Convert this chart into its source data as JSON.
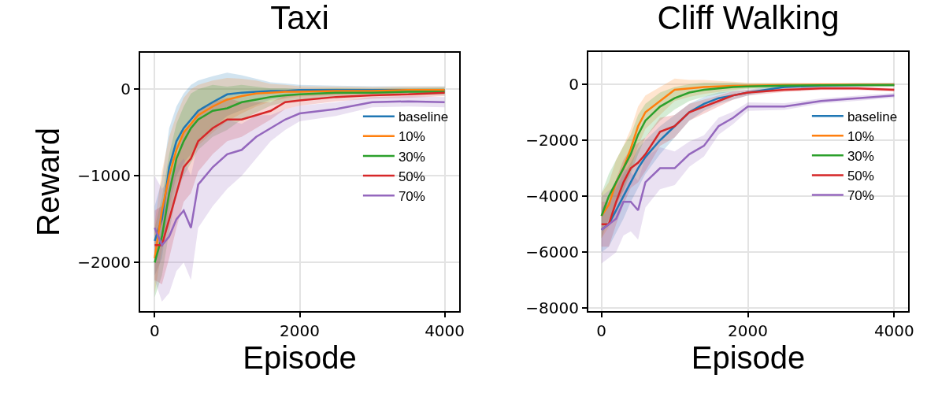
{
  "chart_data": [
    {
      "type": "line",
      "title": "Taxi",
      "xlabel": "Episode",
      "ylabel": "Reward",
      "x": [
        0,
        100,
        200,
        300,
        400,
        500,
        600,
        800,
        1000,
        1200,
        1400,
        1600,
        1800,
        2000,
        2500,
        3000,
        3500,
        4000
      ],
      "xlim": [
        -200,
        4200
      ],
      "xticks": [
        0,
        2000,
        4000
      ],
      "ylim": [
        -2560,
        420
      ],
      "yticks": [
        -2000,
        -1000,
        0
      ],
      "grid": true,
      "legend": "right",
      "line_style": "solid",
      "marker": "none",
      "series": [
        {
          "name": "baseline",
          "color": "#1f77b4",
          "values": [
            -1750,
            -1500,
            -900,
            -600,
            -450,
            -350,
            -250,
            -150,
            -60,
            -40,
            -30,
            -20,
            -20,
            -10,
            -10,
            -10,
            -10,
            -10
          ],
          "lower": [
            -2150,
            -1950,
            -1350,
            -1000,
            -850,
            -750,
            -600,
            -450,
            -310,
            -240,
            -180,
            -120,
            -95,
            -70,
            -60,
            -45,
            -45,
            -45
          ],
          "upper": [
            -1350,
            -1050,
            -450,
            -200,
            -50,
            50,
            100,
            150,
            190,
            160,
            120,
            80,
            65,
            50,
            40,
            35,
            35,
            35
          ]
        },
        {
          "name": "10%",
          "color": "#ff7f0e",
          "values": [
            -1950,
            -1400,
            -1000,
            -700,
            -500,
            -400,
            -300,
            -200,
            -120,
            -80,
            -50,
            -40,
            -30,
            -30,
            -20,
            -20,
            -10,
            -10
          ],
          "lower": [
            -2350,
            -1850,
            -1450,
            -1100,
            -900,
            -800,
            -650,
            -500,
            -370,
            -280,
            -200,
            -140,
            -110,
            -85,
            -70,
            -55,
            -50,
            -50
          ],
          "upper": [
            -1550,
            -950,
            -550,
            -300,
            -100,
            0,
            50,
            100,
            130,
            120,
            100,
            60,
            50,
            35,
            30,
            25,
            30,
            30
          ]
        },
        {
          "name": "30%",
          "color": "#2ca02c",
          "values": [
            -2000,
            -1700,
            -1200,
            -800,
            -600,
            -450,
            -350,
            -250,
            -220,
            -150,
            -120,
            -90,
            -70,
            -60,
            -40,
            -40,
            -30,
            -30
          ],
          "lower": [
            -2400,
            -2150,
            -1650,
            -1200,
            -1000,
            -850,
            -700,
            -550,
            -470,
            -350,
            -270,
            -190,
            -150,
            -120,
            -90,
            -75,
            -70,
            -65
          ],
          "upper": [
            -1600,
            -1250,
            -750,
            -400,
            -200,
            -50,
            0,
            50,
            30,
            50,
            30,
            10,
            10,
            0,
            10,
            5,
            10,
            15
          ]
        },
        {
          "name": "50%",
          "color": "#d62728",
          "values": [
            -1800,
            -1800,
            -1500,
            -1200,
            -900,
            -800,
            -600,
            -450,
            -350,
            -350,
            -300,
            -250,
            -150,
            -130,
            -90,
            -70,
            -60,
            -40
          ],
          "lower": [
            -2200,
            -2250,
            -1950,
            -1600,
            -1300,
            -1200,
            -950,
            -750,
            -600,
            -550,
            -450,
            -350,
            -230,
            -190,
            -140,
            -110,
            -100,
            -80
          ],
          "upper": [
            -1400,
            -1350,
            -1050,
            -800,
            -500,
            -400,
            -250,
            -150,
            -100,
            -150,
            -150,
            -150,
            -70,
            -70,
            -40,
            -30,
            -20,
            0
          ]
        },
        {
          "name": "70%",
          "color": "#9467bd",
          "values": [
            -1600,
            -1800,
            -1700,
            -1500,
            -1400,
            -1600,
            -1100,
            -900,
            -750,
            -700,
            -550,
            -450,
            -350,
            -280,
            -230,
            -150,
            -140,
            -150
          ],
          "lower": [
            -2200,
            -2450,
            -2350,
            -2100,
            -2000,
            -2200,
            -1600,
            -1350,
            -1150,
            -1000,
            -800,
            -600,
            -470,
            -370,
            -310,
            -210,
            -200,
            -210
          ],
          "upper": [
            -1000,
            -1150,
            -1050,
            -900,
            -800,
            -1000,
            -600,
            -450,
            -350,
            -400,
            -300,
            -300,
            -230,
            -190,
            -150,
            -90,
            -80,
            -90
          ]
        }
      ]
    },
    {
      "type": "line",
      "title": "Cliff Walking",
      "xlabel": "Episode",
      "x": [
        0,
        100,
        200,
        300,
        400,
        500,
        600,
        800,
        1000,
        1200,
        1400,
        1600,
        1800,
        2000,
        2500,
        3000,
        3500,
        4000
      ],
      "xlim": [
        -180,
        4190
      ],
      "xticks": [
        0,
        2000,
        4000
      ],
      "ylim": [
        -8100,
        1150
      ],
      "yticks": [
        -8000,
        -6000,
        -4000,
        -2000,
        0
      ],
      "grid": true,
      "legend": "right",
      "line_style": "solid",
      "marker": "none",
      "series": [
        {
          "name": "baseline",
          "color": "#1f77b4",
          "values": [
            -5200,
            -5000,
            -4500,
            -4000,
            -3500,
            -3000,
            -2600,
            -2000,
            -1500,
            -1000,
            -700,
            -500,
            -400,
            -300,
            -100,
            -50,
            -30,
            -20
          ],
          "lower": [
            -6000,
            -5800,
            -5300,
            -4800,
            -4200,
            -3700,
            -3200,
            -2500,
            -1900,
            -1300,
            -950,
            -700,
            -550,
            -400,
            -180,
            -110,
            -90,
            -80
          ],
          "upper": [
            -4400,
            -4200,
            -3700,
            -3200,
            -2800,
            -2300,
            -2000,
            -1500,
            -1100,
            -700,
            -450,
            -300,
            -250,
            -200,
            -20,
            10,
            30,
            40
          ]
        },
        {
          "name": "10%",
          "color": "#ff7f0e",
          "values": [
            -4700,
            -4300,
            -3500,
            -3000,
            -2300,
            -1500,
            -1000,
            -600,
            -200,
            -150,
            -100,
            -80,
            -60,
            -50,
            -30,
            -20,
            -20,
            -20
          ],
          "lower": [
            -5500,
            -5100,
            -4300,
            -3800,
            -3000,
            -2200,
            -1600,
            -1100,
            -600,
            -450,
            -350,
            -280,
            -210,
            -150,
            -110,
            -80,
            -80,
            -80
          ],
          "upper": [
            -3900,
            -3500,
            -2700,
            -2200,
            -1600,
            -800,
            -400,
            -100,
            200,
            150,
            150,
            120,
            90,
            50,
            50,
            40,
            40,
            40
          ]
        },
        {
          "name": "30%",
          "color": "#2ca02c",
          "values": [
            -4700,
            -4000,
            -3500,
            -3000,
            -2500,
            -1800,
            -1300,
            -800,
            -500,
            -300,
            -200,
            -150,
            -100,
            -80,
            -50,
            -40,
            -30,
            -30
          ],
          "lower": [
            -5500,
            -4800,
            -4300,
            -3800,
            -3200,
            -2500,
            -1900,
            -1300,
            -900,
            -600,
            -450,
            -350,
            -250,
            -180,
            -130,
            -100,
            -90,
            -90
          ],
          "upper": [
            -3900,
            -3200,
            -2700,
            -2200,
            -1800,
            -1100,
            -700,
            -300,
            -100,
            0,
            50,
            50,
            50,
            20,
            30,
            20,
            30,
            30
          ]
        },
        {
          "name": "50%",
          "color": "#d62728",
          "values": [
            -5000,
            -5000,
            -4200,
            -3500,
            -3000,
            -2800,
            -2500,
            -1700,
            -1500,
            -1000,
            -800,
            -600,
            -400,
            -300,
            -200,
            -150,
            -150,
            -200
          ],
          "lower": [
            -5800,
            -5800,
            -5000,
            -4300,
            -3700,
            -3500,
            -3100,
            -2200,
            -1900,
            -1300,
            -1050,
            -800,
            -550,
            -400,
            -280,
            -210,
            -210,
            -260
          ],
          "upper": [
            -4200,
            -4200,
            -3400,
            -2700,
            -2300,
            -2100,
            -1900,
            -1200,
            -1100,
            -700,
            -550,
            -400,
            -250,
            -200,
            -120,
            -90,
            -90,
            -140
          ]
        },
        {
          "name": "70%",
          "color": "#9467bd",
          "values": [
            -5200,
            -5000,
            -4800,
            -4200,
            -4200,
            -4500,
            -3500,
            -3000,
            -3000,
            -2500,
            -2200,
            -1500,
            -1200,
            -800,
            -800,
            -600,
            -500,
            -400
          ],
          "lower": [
            -6400,
            -6200,
            -6000,
            -5400,
            -5250,
            -5550,
            -4400,
            -3750,
            -3600,
            -2950,
            -2580,
            -1800,
            -1420,
            -950,
            -920,
            -690,
            -590,
            -490
          ],
          "upper": [
            -4000,
            -3800,
            -3600,
            -3000,
            -3150,
            -3450,
            -2600,
            -2250,
            -2400,
            -2050,
            -1820,
            -1200,
            -980,
            -650,
            -680,
            -510,
            -410,
            -310
          ]
        }
      ]
    }
  ]
}
